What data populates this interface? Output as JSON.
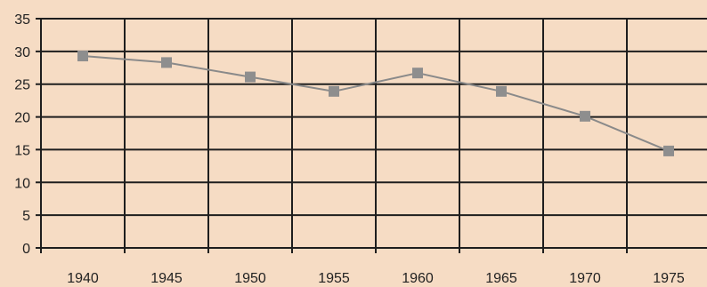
{
  "chart_data": {
    "type": "line",
    "title": "",
    "xlabel": "",
    "ylabel": "",
    "categories": [
      "1940",
      "1945",
      "1950",
      "1955",
      "1960",
      "1965",
      "1970",
      "1975"
    ],
    "series": [
      {
        "values": [
          29.3,
          28.3,
          26.1,
          23.9,
          26.7,
          23.9,
          20.1,
          14.8
        ]
      }
    ],
    "ylim": [
      0,
      35
    ],
    "yticks": [
      0,
      5,
      10,
      15,
      20,
      25,
      30,
      35
    ],
    "grid": true,
    "legend": "none",
    "colors": {
      "background": "#f6dcc4",
      "grid": "#1e1e1e",
      "line": "#8a8a8a",
      "marker": "#8e8e8e",
      "text": "#222222"
    }
  }
}
